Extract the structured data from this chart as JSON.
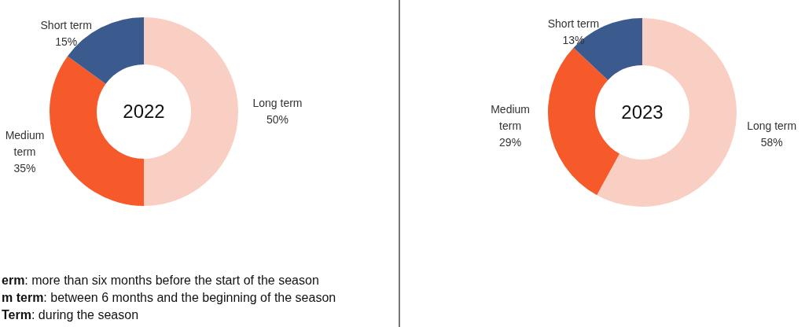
{
  "chart_data": [
    {
      "type": "donut",
      "title": "2022",
      "categories": [
        "Long term",
        "Medium term",
        "Short term"
      ],
      "values": [
        50,
        35,
        15
      ],
      "value_labels": [
        "50%",
        "35%",
        "15%"
      ],
      "colors": [
        "#f9cfc4",
        "#f65a2b",
        "#3b5a8e"
      ],
      "annotations": [
        "erm: more than six months before the start of the season",
        "m term: between 6 months and the beginning of the season",
        "Term: during the season"
      ]
    },
    {
      "type": "donut",
      "title": "2023",
      "categories": [
        "Long term",
        "Medium term",
        "Short term"
      ],
      "values": [
        58,
        29,
        13
      ],
      "value_labels": [
        "58%",
        "29%",
        "13%"
      ],
      "colors": [
        "#f9cfc4",
        "#f65a2b",
        "#3b5a8e"
      ]
    }
  ]
}
